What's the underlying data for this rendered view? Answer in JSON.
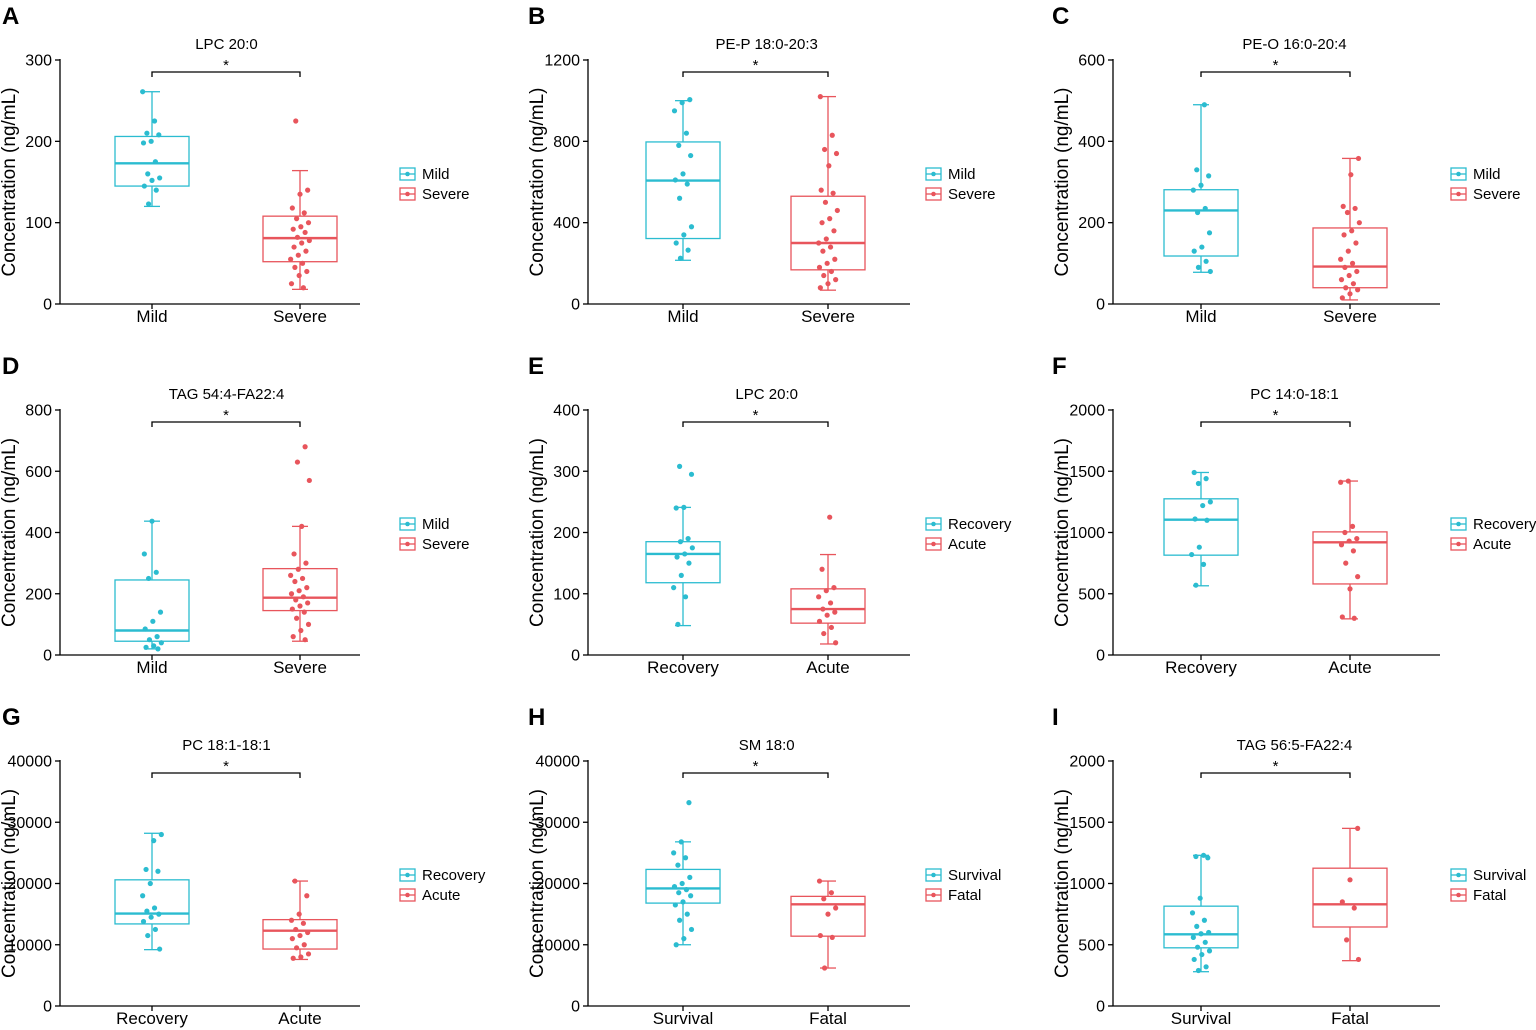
{
  "colors": {
    "group1": "#2bbcd0",
    "group2": "#e8555c",
    "axis": "#000000"
  },
  "chart_data": [
    {
      "panel": "A",
      "type": "box",
      "title": "LPC 20:0",
      "ylabel": "Concentration (ng/mL)",
      "ylim": [
        0,
        300
      ],
      "yticks": [
        0,
        100,
        200,
        300
      ],
      "significance": "*",
      "legend": [
        "Mild",
        "Severe"
      ],
      "groups": [
        {
          "name": "Mild",
          "whisker_low": 120,
          "q1": 145,
          "median": 173,
          "q3": 206,
          "whisker_high": 261,
          "points": [
            261,
            225,
            210,
            208,
            200,
            198,
            175,
            160,
            155,
            152,
            145,
            140,
            123
          ]
        },
        {
          "name": "Severe",
          "whisker_low": 18,
          "q1": 52,
          "median": 81,
          "q3": 108,
          "whisker_high": 164,
          "points": [
            225,
            140,
            135,
            118,
            112,
            105,
            100,
            95,
            92,
            88,
            82,
            78,
            75,
            70,
            65,
            60,
            55,
            50,
            45,
            40,
            35,
            25,
            20
          ]
        }
      ]
    },
    {
      "panel": "B",
      "type": "box",
      "title": "PE-P 18:0-20:3",
      "ylabel": "Concentration (ng/mL)",
      "ylim": [
        0,
        1200
      ],
      "yticks": [
        0,
        400,
        800,
        1200
      ],
      "significance": "*",
      "legend": [
        "Mild",
        "Severe"
      ],
      "groups": [
        {
          "name": "Mild",
          "whisker_low": 215,
          "q1": 322,
          "median": 607,
          "q3": 797,
          "whisker_high": 1000,
          "points": [
            1005,
            990,
            950,
            840,
            780,
            730,
            640,
            610,
            590,
            520,
            380,
            340,
            300,
            265,
            225
          ]
        },
        {
          "name": "Severe",
          "whisker_low": 68,
          "q1": 168,
          "median": 300,
          "q3": 530,
          "whisker_high": 1020,
          "points": [
            1020,
            830,
            760,
            740,
            680,
            560,
            545,
            500,
            460,
            420,
            400,
            360,
            320,
            300,
            280,
            260,
            220,
            200,
            180,
            160,
            140,
            120,
            100,
            80
          ]
        }
      ]
    },
    {
      "panel": "C",
      "type": "box",
      "title": "PE-O 16:0-20:4",
      "ylabel": "Concentration (ng/mL)",
      "ylim": [
        0,
        600
      ],
      "yticks": [
        0,
        200,
        400,
        600
      ],
      "significance": "*",
      "legend": [
        "Mild",
        "Severe"
      ],
      "groups": [
        {
          "name": "Mild",
          "whisker_low": 78,
          "q1": 118,
          "median": 230,
          "q3": 281,
          "whisker_high": 490,
          "points": [
            490,
            330,
            315,
            292,
            280,
            235,
            225,
            175,
            140,
            130,
            105,
            90,
            80
          ]
        },
        {
          "name": "Severe",
          "whisker_low": 10,
          "q1": 40,
          "median": 92,
          "q3": 187,
          "whisker_high": 358,
          "points": [
            358,
            318,
            240,
            235,
            225,
            200,
            180,
            170,
            150,
            130,
            110,
            100,
            90,
            80,
            70,
            60,
            50,
            40,
            35,
            25,
            15
          ]
        }
      ]
    },
    {
      "panel": "D",
      "type": "box",
      "title": "TAG 54:4-FA22:4",
      "ylabel": "Concentration (ng/mL)",
      "ylim": [
        0,
        800
      ],
      "yticks": [
        0,
        200,
        400,
        600,
        800
      ],
      "significance": "*",
      "legend": [
        "Mild",
        "Severe"
      ],
      "groups": [
        {
          "name": "Mild",
          "whisker_low": 20,
          "q1": 45,
          "median": 80,
          "q3": 245,
          "whisker_high": 437,
          "points": [
            437,
            330,
            270,
            250,
            140,
            110,
            85,
            60,
            50,
            40,
            30,
            25,
            20
          ]
        },
        {
          "name": "Severe",
          "whisker_low": 45,
          "q1": 145,
          "median": 187,
          "q3": 282,
          "whisker_high": 420,
          "points": [
            680,
            630,
            570,
            420,
            330,
            300,
            280,
            260,
            250,
            240,
            220,
            210,
            200,
            190,
            180,
            170,
            160,
            150,
            140,
            120,
            100,
            80,
            60,
            50
          ]
        }
      ]
    },
    {
      "panel": "E",
      "type": "box",
      "title": "LPC 20:0",
      "ylabel": "Concentration (ng/mL)",
      "ylim": [
        0,
        400
      ],
      "yticks": [
        0,
        100,
        200,
        300,
        400
      ],
      "significance": "*",
      "legend": [
        "Recovery",
        "Acute"
      ],
      "groups": [
        {
          "name": "Recovery",
          "whisker_low": 48,
          "q1": 118,
          "median": 165,
          "q3": 185,
          "whisker_high": 241,
          "points": [
            308,
            295,
            241,
            240,
            190,
            185,
            175,
            165,
            160,
            150,
            130,
            110,
            95,
            50
          ]
        },
        {
          "name": "Acute",
          "whisker_low": 18,
          "q1": 52,
          "median": 75,
          "q3": 108,
          "whisker_high": 164,
          "points": [
            225,
            140,
            110,
            105,
            95,
            85,
            75,
            70,
            65,
            55,
            45,
            35,
            20
          ]
        }
      ]
    },
    {
      "panel": "F",
      "type": "box",
      "title": "PC 14:0-18:1",
      "ylabel": "Concentration (ng/mL)",
      "ylim": [
        0,
        2000
      ],
      "yticks": [
        0,
        500,
        1000,
        1500,
        2000
      ],
      "significance": "*",
      "legend": [
        "Recovery",
        "Acute"
      ],
      "groups": [
        {
          "name": "Recovery",
          "whisker_low": 565,
          "q1": 815,
          "median": 1105,
          "q3": 1275,
          "whisker_high": 1490,
          "points": [
            1490,
            1440,
            1400,
            1250,
            1220,
            1110,
            1100,
            880,
            820,
            740,
            570
          ]
        },
        {
          "name": "Acute",
          "whisker_low": 295,
          "q1": 580,
          "median": 920,
          "q3": 1005,
          "whisker_high": 1420,
          "points": [
            1420,
            1410,
            1050,
            1000,
            950,
            930,
            900,
            850,
            750,
            640,
            540,
            310,
            300
          ]
        }
      ]
    },
    {
      "panel": "G",
      "type": "box",
      "title": "PC 18:1-18:1",
      "ylabel": "Concentration (ng/mL)",
      "ylim": [
        0,
        40000
      ],
      "yticks": [
        0,
        10000,
        20000,
        30000,
        40000
      ],
      "significance": "*",
      "legend": [
        "Recovery",
        "Acute"
      ],
      "groups": [
        {
          "name": "Recovery",
          "whisker_low": 9200,
          "q1": 13400,
          "median": 15100,
          "q3": 20600,
          "whisker_high": 28200,
          "points": [
            28000,
            27000,
            22300,
            22000,
            20000,
            18000,
            16000,
            15500,
            15000,
            14500,
            13800,
            12500,
            11500,
            9300
          ]
        },
        {
          "name": "Acute",
          "whisker_low": 7600,
          "q1": 9300,
          "median": 12300,
          "q3": 14100,
          "whisker_high": 20400,
          "points": [
            20400,
            18000,
            15000,
            14000,
            13500,
            12500,
            12000,
            11500,
            11000,
            10000,
            9500,
            8500,
            8000,
            7800
          ]
        }
      ]
    },
    {
      "panel": "H",
      "type": "box",
      "title": "SM 18:0",
      "ylabel": "Concentration (ng/mL)",
      "ylim": [
        0,
        40000
      ],
      "yticks": [
        0,
        10000,
        20000,
        30000,
        40000
      ],
      "significance": "*",
      "legend": [
        "Survival",
        "Fatal"
      ],
      "groups": [
        {
          "name": "Survival",
          "whisker_low": 10000,
          "q1": 16800,
          "median": 19200,
          "q3": 22300,
          "whisker_high": 26800,
          "points": [
            33200,
            26800,
            25000,
            24200,
            23000,
            21000,
            20000,
            19500,
            19000,
            18500,
            18000,
            17000,
            16500,
            15000,
            14000,
            12500,
            11000,
            10000
          ]
        },
        {
          "name": "Fatal",
          "whisker_low": 6200,
          "q1": 11400,
          "median": 16600,
          "q3": 17900,
          "whisker_high": 20400,
          "points": [
            20400,
            18500,
            17500,
            16000,
            15000,
            11500,
            11200,
            6200
          ]
        }
      ]
    },
    {
      "panel": "I",
      "type": "box",
      "title": "TAG 56:5-FA22:4",
      "ylabel": "Concentration (ng/mL)",
      "ylim": [
        0,
        2000
      ],
      "yticks": [
        0,
        500,
        1000,
        1500,
        2000
      ],
      "significance": "*",
      "legend": [
        "Survival",
        "Fatal"
      ],
      "groups": [
        {
          "name": "Survival",
          "whisker_low": 280,
          "q1": 475,
          "median": 585,
          "q3": 815,
          "whisker_high": 1230,
          "points": [
            1230,
            1220,
            1210,
            880,
            760,
            700,
            650,
            600,
            590,
            560,
            520,
            480,
            450,
            420,
            380,
            320,
            290
          ]
        },
        {
          "name": "Fatal",
          "whisker_low": 370,
          "q1": 645,
          "median": 830,
          "q3": 1125,
          "whisker_high": 1450,
          "points": [
            1450,
            1030,
            850,
            800,
            540,
            380
          ]
        }
      ]
    }
  ]
}
